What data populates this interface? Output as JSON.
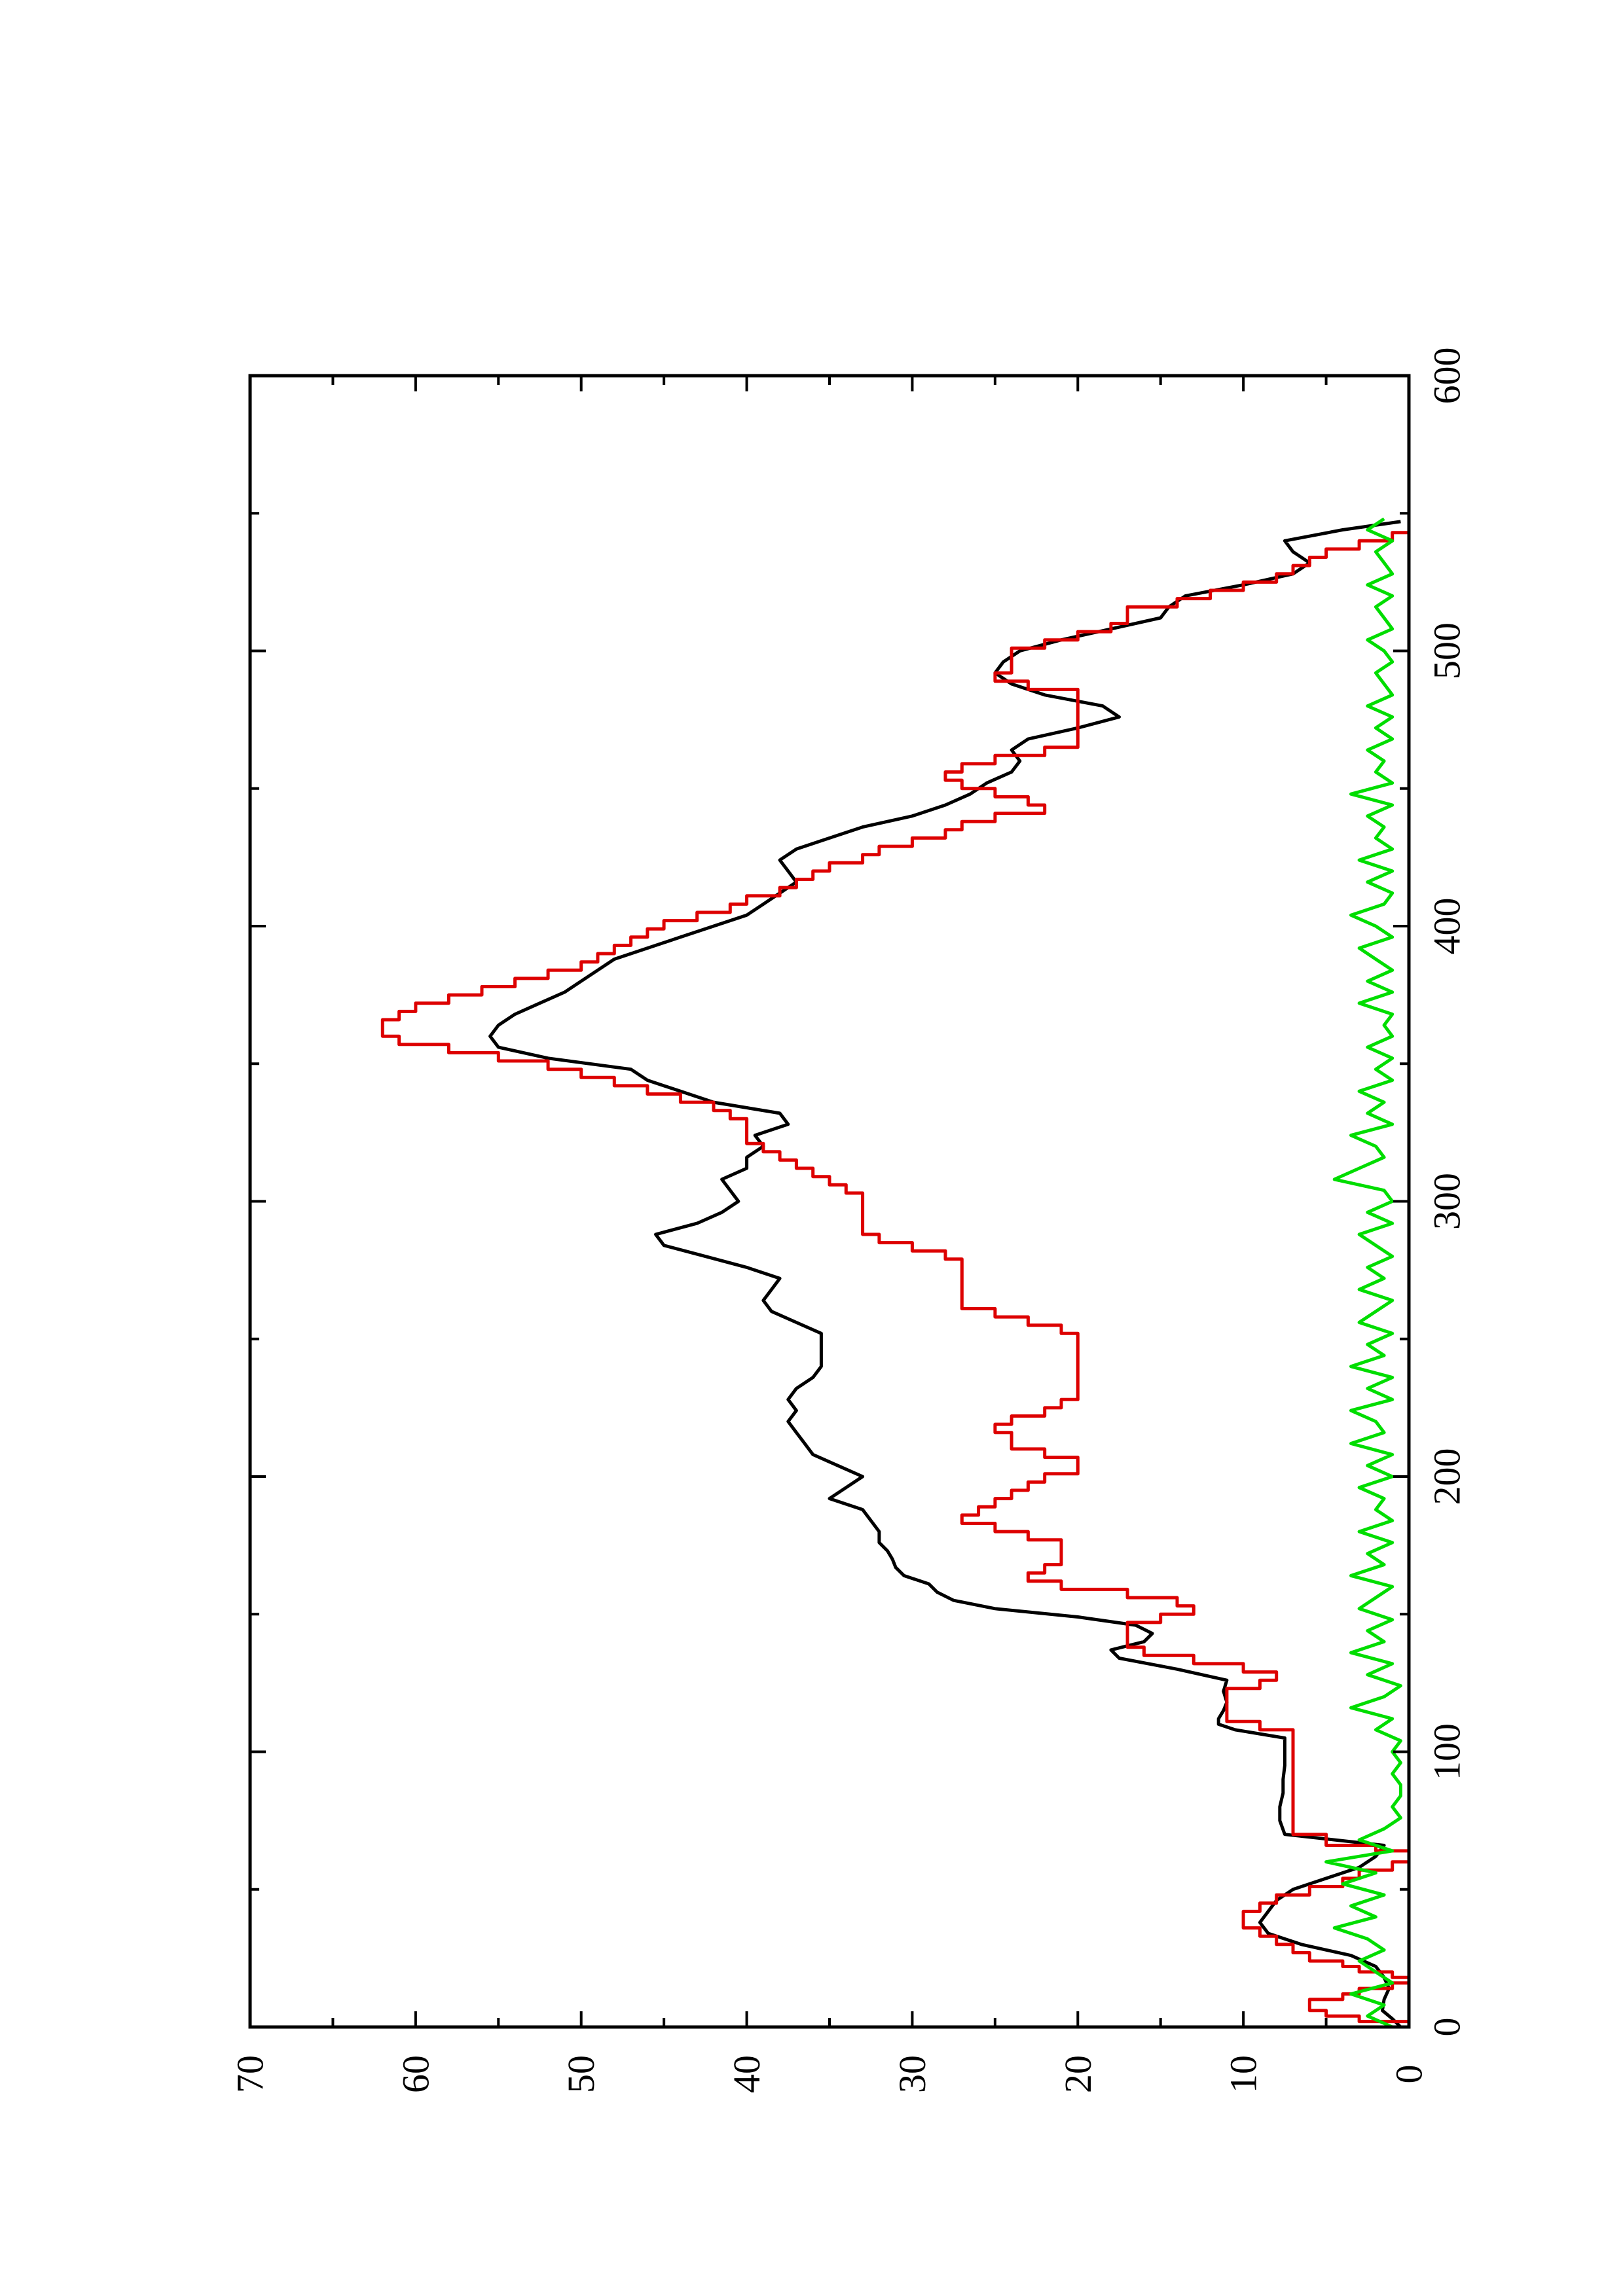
{
  "chart_data": {
    "type": "line",
    "title": "",
    "xlabel": "",
    "ylabel": "",
    "orientation": "rotated-90-ccw",
    "xlim": [
      0,
      600
    ],
    "ylim": [
      0,
      70
    ],
    "x_ticks": [
      0,
      100,
      200,
      300,
      400,
      500,
      600
    ],
    "x_tick_labels": [
      "0",
      "100",
      "200",
      "300",
      "400",
      "500",
      "600"
    ],
    "x_minor_ticks": [
      50,
      150,
      250,
      350,
      450,
      550
    ],
    "y_ticks": [
      0,
      10,
      20,
      30,
      40,
      50,
      60,
      70
    ],
    "y_tick_labels": [
      "0",
      "10",
      "20",
      "30",
      "40",
      "50",
      "60",
      "70"
    ],
    "y_minor_ticks": [
      5,
      15,
      25,
      35,
      45,
      55,
      65
    ],
    "grid": false,
    "legend": "none",
    "series": [
      {
        "color": "#000000",
        "x": [
          0,
          3,
          6,
          10,
          14,
          18,
          22,
          26,
          30,
          34,
          38,
          42,
          46,
          50,
          54,
          58,
          62,
          66,
          70,
          75,
          80,
          85,
          90,
          95,
          100,
          105,
          108,
          110,
          112,
          115,
          118,
          122,
          126,
          130,
          134,
          137,
          140,
          143,
          146,
          149,
          152,
          155,
          158,
          161,
          164,
          167,
          170,
          173,
          176,
          180,
          184,
          188,
          192,
          196,
          200,
          204,
          208,
          212,
          216,
          220,
          224,
          228,
          232,
          236,
          240,
          244,
          248,
          252,
          256,
          260,
          264,
          268,
          272,
          276,
          280,
          284,
          288,
          292,
          296,
          300,
          304,
          308,
          312,
          316,
          320,
          324,
          328,
          332,
          336,
          340,
          344,
          348,
          352,
          356,
          360,
          364,
          368,
          372,
          376,
          380,
          384,
          388,
          392,
          396,
          400,
          404,
          408,
          412,
          416,
          420,
          424,
          428,
          432,
          436,
          440,
          444,
          448,
          452,
          456,
          460,
          464,
          468,
          472,
          476,
          480,
          484,
          488,
          492,
          496,
          500,
          504,
          508,
          512,
          516,
          520,
          524,
          528,
          532,
          536,
          540,
          544,
          547
        ],
        "y": [
          0.5,
          1.0,
          1.6,
          1.5,
          1.2,
          1.5,
          2.0,
          3.5,
          6.5,
          8.5,
          9.0,
          8.5,
          8.0,
          7.0,
          5.0,
          3.0,
          2.0,
          1.5,
          7.5,
          7.8,
          7.8,
          7.6,
          7.6,
          7.5,
          7.5,
          7.5,
          10.5,
          11.5,
          11.5,
          11.2,
          11.0,
          11.2,
          11.0,
          14.0,
          17.5,
          18.0,
          16.0,
          15.5,
          16.5,
          20.0,
          25.0,
          27.5,
          28.5,
          29.0,
          30.5,
          31.0,
          31.2,
          31.5,
          32.0,
          32.0,
          32.5,
          33.0,
          35.0,
          34.0,
          33.0,
          34.5,
          36.0,
          36.5,
          37.0,
          37.5,
          37.0,
          37.5,
          37.0,
          36.0,
          35.5,
          35.5,
          35.5,
          35.5,
          37.0,
          38.5,
          39.0,
          38.5,
          38.0,
          40.0,
          42.5,
          45.0,
          45.5,
          43.0,
          41.5,
          40.5,
          41.0,
          41.5,
          40.0,
          40.0,
          39.0,
          39.5,
          37.5,
          38.0,
          42.0,
          44.0,
          46.0,
          47.0,
          52.0,
          55.0,
          55.5,
          55.0,
          54.0,
          52.5,
          51.0,
          50.0,
          49.0,
          48.0,
          46.0,
          44.0,
          42.0,
          40.0,
          39.0,
          38.0,
          37.0,
          37.5,
          38.0,
          37.0,
          35.0,
          33.0,
          30.0,
          28.0,
          26.5,
          25.5,
          24.0,
          23.5,
          24.0,
          23.0,
          20.0,
          17.5,
          18.5,
          22.0,
          24.0,
          25.0,
          24.5,
          23.5,
          21.0,
          18.0,
          15.0,
          14.5,
          13.5,
          10.0,
          7.0,
          6.0,
          7.0,
          7.5,
          4.0,
          0.5
        ]
      },
      {
        "color": "#dd0000",
        "x": [
          0,
          2,
          4,
          6,
          8,
          10,
          12,
          14,
          16,
          18,
          20,
          22,
          24,
          27,
          30,
          33,
          36,
          39,
          42,
          45,
          48,
          51,
          54,
          57,
          60,
          62,
          64,
          66,
          70,
          75,
          80,
          85,
          90,
          95,
          100,
          105,
          108,
          111,
          114,
          117,
          120,
          123,
          126,
          129,
          132,
          135,
          138,
          141,
          144,
          147,
          150,
          153,
          156,
          159,
          162,
          165,
          168,
          171,
          174,
          177,
          180,
          183,
          186,
          189,
          192,
          195,
          198,
          201,
          204,
          207,
          210,
          213,
          216,
          219,
          222,
          225,
          228,
          231,
          234,
          237,
          240,
          243,
          246,
          249,
          252,
          255,
          258,
          261,
          264,
          267,
          270,
          273,
          276,
          279,
          282,
          285,
          288,
          291,
          294,
          297,
          300,
          303,
          306,
          309,
          312,
          315,
          318,
          321,
          324,
          327,
          330,
          333,
          336,
          339,
          342,
          345,
          348,
          351,
          354,
          357,
          360,
          363,
          366,
          369,
          372,
          375,
          378,
          381,
          384,
          387,
          390,
          393,
          396,
          399,
          402,
          405,
          408,
          411,
          414,
          417,
          420,
          423,
          426,
          429,
          432,
          435,
          438,
          441,
          444,
          447,
          450,
          453,
          456,
          459,
          462,
          465,
          468,
          471,
          474,
          477,
          480,
          483,
          486,
          489,
          492,
          495,
          498,
          501,
          504,
          507,
          510,
          513,
          516,
          519,
          522,
          525,
          528,
          531,
          534,
          537,
          540,
          543,
          546
        ],
        "y": [
          0,
          3,
          5,
          6,
          6,
          4,
          3,
          1,
          0,
          1,
          3,
          4,
          6,
          7,
          8,
          9,
          10,
          10,
          9,
          8,
          6,
          4,
          3,
          1,
          0,
          0,
          2,
          5,
          7,
          7,
          7,
          7,
          7,
          7,
          7,
          7,
          9,
          11,
          11,
          11,
          11,
          9,
          8,
          10,
          13,
          16,
          17,
          17,
          17,
          15,
          13,
          14,
          17,
          21,
          23,
          22,
          21,
          21,
          21,
          23,
          25,
          27,
          26,
          25,
          24,
          23,
          22,
          20,
          20,
          22,
          24,
          24,
          25,
          24,
          22,
          21,
          20,
          20,
          20,
          20,
          20,
          20,
          20,
          20,
          21,
          23,
          25,
          27,
          27,
          27,
          27,
          27,
          27,
          28,
          30,
          32,
          33,
          33,
          33,
          33,
          33,
          34,
          35,
          36,
          37,
          38,
          39,
          40,
          40,
          40,
          41,
          42,
          44,
          46,
          48,
          50,
          52,
          55,
          58,
          61,
          62,
          62,
          61,
          60,
          58,
          56,
          54,
          52,
          50,
          49,
          48,
          47,
          46,
          45,
          43,
          41,
          40,
          38,
          37,
          36,
          35,
          33,
          32,
          30,
          28,
          27,
          25,
          22,
          23,
          25,
          27,
          28,
          27,
          25,
          22,
          20,
          20,
          20,
          20,
          20,
          20,
          20,
          23,
          25,
          24,
          24,
          24,
          22,
          20,
          18,
          17,
          17,
          14,
          12,
          10,
          8,
          7,
          6,
          5,
          3,
          1,
          0,
          0
        ],
        "step": true
      },
      {
        "color": "#00dd00",
        "x": [
          0,
          4,
          8,
          12,
          16,
          20,
          24,
          28,
          32,
          36,
          40,
          44,
          48,
          52,
          56,
          60,
          64,
          68,
          72,
          76,
          80,
          84,
          88,
          92,
          96,
          100,
          104,
          108,
          112,
          116,
          120,
          124,
          128,
          132,
          136,
          140,
          144,
          148,
          152,
          156,
          160,
          164,
          168,
          172,
          176,
          180,
          184,
          188,
          192,
          196,
          200,
          204,
          208,
          212,
          216,
          220,
          224,
          228,
          232,
          236,
          240,
          244,
          248,
          252,
          256,
          260,
          264,
          268,
          272,
          276,
          280,
          284,
          288,
          292,
          296,
          300,
          304,
          308,
          312,
          316,
          320,
          324,
          328,
          332,
          336,
          340,
          344,
          348,
          352,
          356,
          360,
          364,
          368,
          372,
          376,
          380,
          384,
          388,
          392,
          396,
          400,
          404,
          408,
          412,
          416,
          420,
          424,
          428,
          432,
          436,
          440,
          444,
          448,
          452,
          456,
          460,
          464,
          468,
          472,
          476,
          480,
          484,
          488,
          492,
          496,
          500,
          504,
          508,
          512,
          516,
          520,
          524,
          528,
          532,
          536,
          540,
          544,
          548
        ],
        "y": [
          1.0,
          2.5,
          1.5,
          3.5,
          1.0,
          2.0,
          3.0,
          1.5,
          2.5,
          4.5,
          2.0,
          3.5,
          1.5,
          4.0,
          2.0,
          5.0,
          1.0,
          3.0,
          1.5,
          0.5,
          1.0,
          0.5,
          0.5,
          1.0,
          0.5,
          1.0,
          0.5,
          2.0,
          1.0,
          3.5,
          1.5,
          0.5,
          2.5,
          1.0,
          3.5,
          1.5,
          2.5,
          1.0,
          3.0,
          2.0,
          1.0,
          3.5,
          1.5,
          2.5,
          1.0,
          3.0,
          1.0,
          2.0,
          1.5,
          3.0,
          1.0,
          2.5,
          1.0,
          3.5,
          1.5,
          2.0,
          3.5,
          1.0,
          2.5,
          1.0,
          3.5,
          1.5,
          2.5,
          1.0,
          3.0,
          2.0,
          1.0,
          3.0,
          1.5,
          2.5,
          1.0,
          2.0,
          3.0,
          1.0,
          2.5,
          1.0,
          1.5,
          4.5,
          3.0,
          1.5,
          2.0,
          3.5,
          1.0,
          2.5,
          1.5,
          3.0,
          1.0,
          2.0,
          1.0,
          2.5,
          1.0,
          1.5,
          1.0,
          3.0,
          1.0,
          2.5,
          1.0,
          2.0,
          3.0,
          1.0,
          2.0,
          3.5,
          1.5,
          1.0,
          2.5,
          1.0,
          3.0,
          1.0,
          2.0,
          1.5,
          2.5,
          1.0,
          3.5,
          1.0,
          2.0,
          1.5,
          2.5,
          1.0,
          2.0,
          1.0,
          2.5,
          1.0,
          1.5,
          2.0,
          1.0,
          1.5,
          2.5,
          1.0,
          1.5,
          2.0,
          1.0,
          2.5,
          1.0,
          1.5,
          2.0,
          1.0,
          2.5,
          1.5
        ]
      }
    ]
  }
}
